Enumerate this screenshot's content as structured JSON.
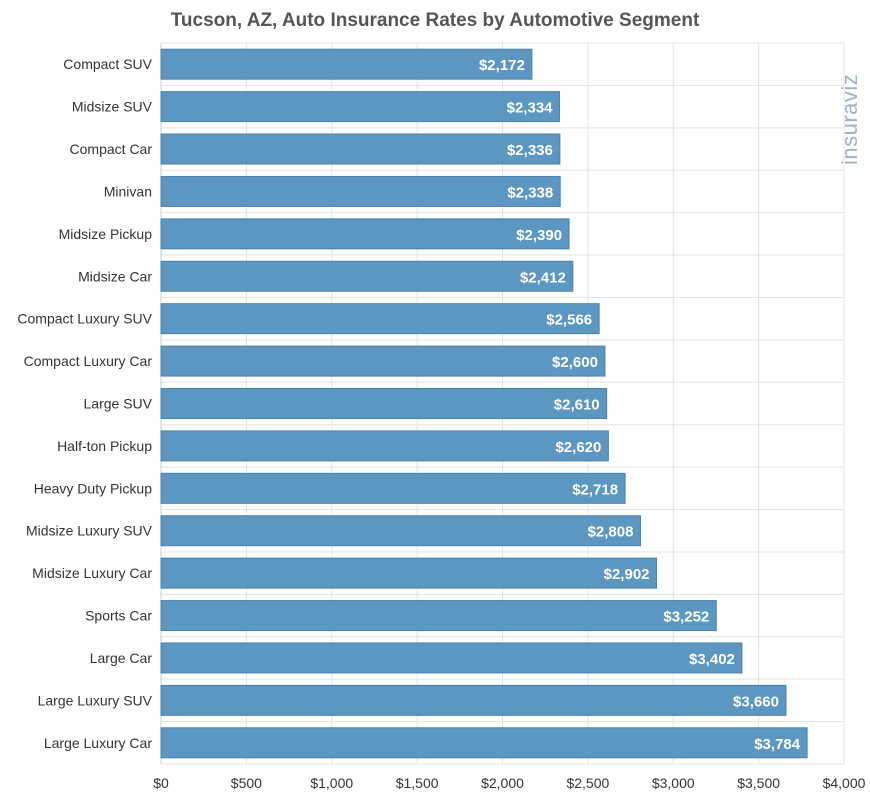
{
  "chart_data": {
    "type": "bar",
    "orientation": "horizontal",
    "title": "Tucson, AZ, Auto Insurance Rates by Automotive Segment",
    "categories": [
      "Compact SUV",
      "Midsize SUV",
      "Compact Car",
      "Minivan",
      "Midsize Pickup",
      "Midsize Car",
      "Compact Luxury SUV",
      "Compact Luxury Car",
      "Large SUV",
      "Half-ton Pickup",
      "Heavy Duty Pickup",
      "Midsize Luxury SUV",
      "Midsize Luxury Car",
      "Sports Car",
      "Large Car",
      "Large Luxury SUV",
      "Large Luxury Car"
    ],
    "values": [
      2172,
      2334,
      2336,
      2338,
      2390,
      2412,
      2566,
      2600,
      2610,
      2620,
      2718,
      2808,
      2902,
      3252,
      3402,
      3660,
      3784
    ],
    "value_labels": [
      "$2,172",
      "$2,334",
      "$2,336",
      "$2,338",
      "$2,390",
      "$2,412",
      "$2,566",
      "$2,600",
      "$2,610",
      "$2,620",
      "$2,718",
      "$2,808",
      "$2,902",
      "$3,252",
      "$3,402",
      "$3,660",
      "$3,784"
    ],
    "xlim": [
      0,
      4000
    ],
    "ticks": [
      0,
      500,
      1000,
      1500,
      2000,
      2500,
      3000,
      3500,
      4000
    ],
    "tick_labels": [
      "$0",
      "$500",
      "$1,000",
      "$1,500",
      "$2,000",
      "$2,500",
      "$3,000",
      "$3,500",
      "$4,000"
    ],
    "grid": true,
    "colors": {
      "bar": "#5b97c0",
      "bar_edge": "#4a83ad",
      "grid": "#e3e3e3",
      "axis": "#cccccc"
    }
  },
  "watermark": {
    "text": "insuraviz"
  }
}
